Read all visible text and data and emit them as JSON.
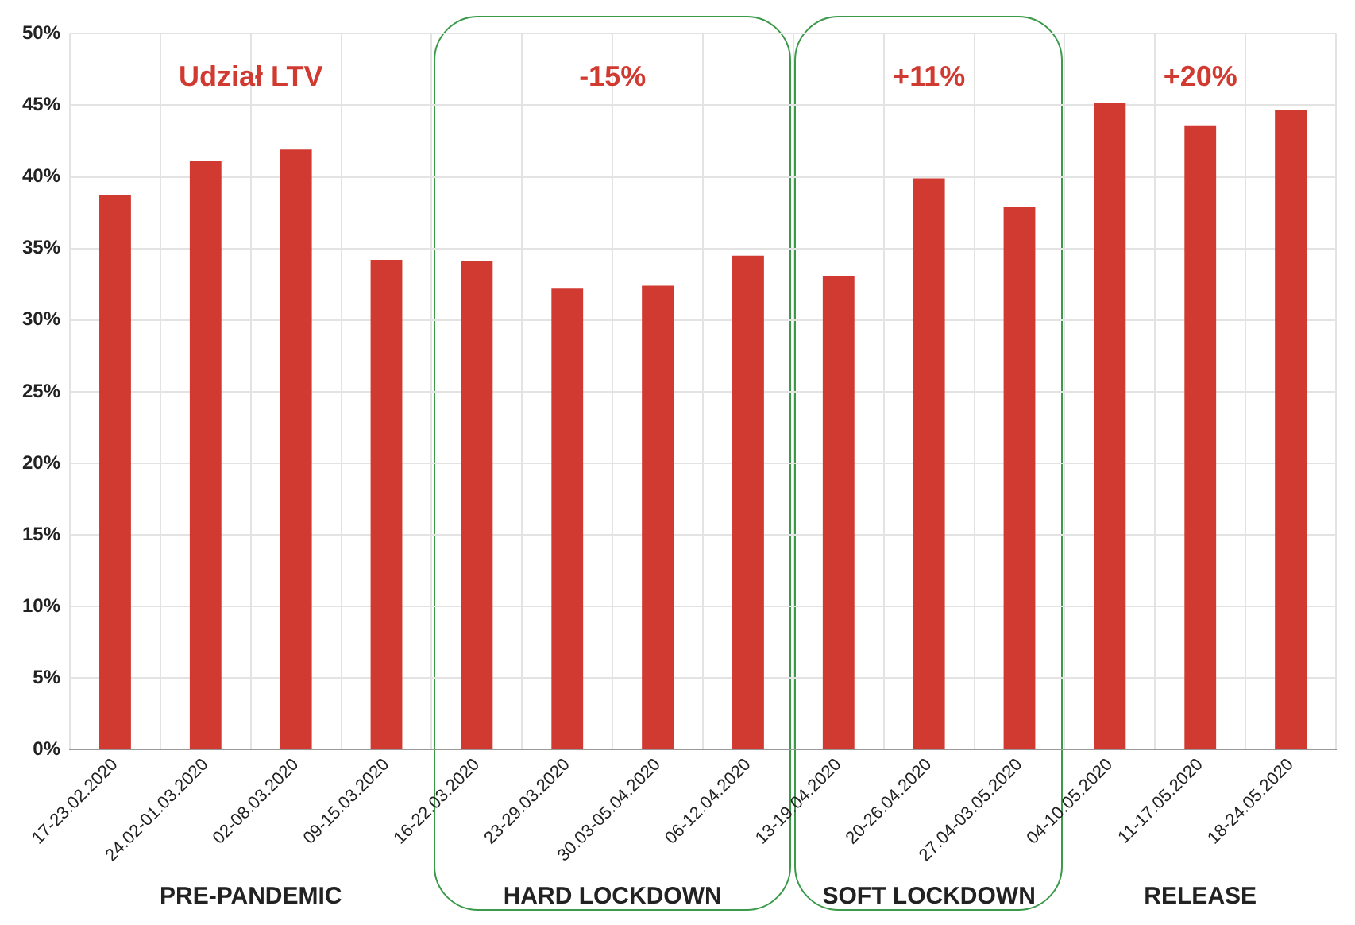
{
  "chart_data": {
    "type": "bar",
    "title": "Udział LTV",
    "categories": [
      "17-23.02.2020",
      "24.02-01.03.2020",
      "02-08.03.2020",
      "09-15.03.2020",
      "16-22.03.2020",
      "23-29.03.2020",
      "30.03-05.04.2020",
      "06-12.04.2020",
      "13-19.04.2020",
      "20-26.04.2020",
      "27.04-03.05.2020",
      "04-10.05.2020",
      "11-17.05.2020",
      "18-24.05.2020"
    ],
    "values": [
      38.7,
      41.1,
      41.9,
      34.2,
      34.1,
      32.2,
      32.4,
      34.5,
      33.1,
      39.9,
      37.9,
      45.2,
      43.6,
      44.7
    ],
    "color": "#d13a31",
    "ylim": [
      0,
      50
    ],
    "yticks": [
      {
        "value": 0,
        "label": "0%"
      },
      {
        "value": 5,
        "label": "5%"
      },
      {
        "value": 10,
        "label": "10%"
      },
      {
        "value": 15,
        "label": "15%"
      },
      {
        "value": 20,
        "label": "20%"
      },
      {
        "value": 25,
        "label": "25%"
      },
      {
        "value": 30,
        "label": "30%"
      },
      {
        "value": 35,
        "label": "35%"
      },
      {
        "value": 40,
        "label": "40%"
      },
      {
        "value": 45,
        "label": "45%"
      },
      {
        "value": 50,
        "label": "50%"
      }
    ],
    "grid": true,
    "legend": false,
    "annotations": [
      "PRE-PANDEMIC",
      "HARD LOCKDOWN",
      "SOFT LOCKDOWN",
      "RELEASE",
      "-15%",
      "+11%",
      "+20%"
    ]
  }
}
